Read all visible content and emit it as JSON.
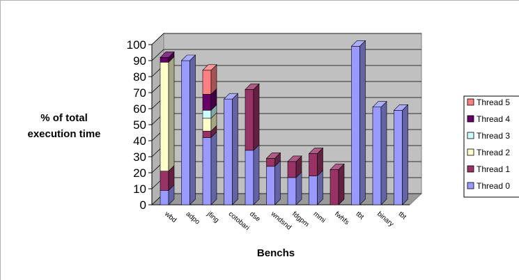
{
  "chart_data": {
    "type": "bar",
    "stacked": true,
    "three_d": true,
    "xlabel": "Benchs",
    "ylabel_lines": [
      "% of total",
      "execution time"
    ],
    "ylim": [
      0,
      100
    ],
    "yticks": [
      0,
      10,
      20,
      30,
      40,
      50,
      60,
      70,
      80,
      90,
      100
    ],
    "grid": true,
    "legend_position": "right",
    "categories": [
      "wbd",
      "adpo",
      "jfing",
      "cotobari",
      "dse",
      "wndsnd",
      "fdgpm",
      "mmi",
      "fwhfs",
      "tbt",
      "binary",
      "tbt"
    ],
    "series": [
      {
        "name": "Thread 0",
        "color": "#9999ff",
        "values": [
          9,
          90,
          42,
          66,
          34,
          24,
          17,
          18,
          0,
          99,
          61,
          59
        ]
      },
      {
        "name": "Thread 1",
        "color": "#993366",
        "values": [
          12,
          0,
          4,
          0,
          38,
          5,
          10,
          14,
          22,
          0,
          0,
          0
        ]
      },
      {
        "name": "Thread 2",
        "color": "#ffffcc",
        "values": [
          68,
          0,
          8,
          0,
          0,
          0,
          0,
          0,
          0,
          0,
          0,
          0
        ]
      },
      {
        "name": "Thread 3",
        "color": "#ccffff",
        "values": [
          0,
          0,
          5,
          0,
          0,
          0,
          0,
          0,
          0,
          0,
          0,
          0
        ]
      },
      {
        "name": "Thread 4",
        "color": "#660066",
        "values": [
          3,
          0,
          10,
          0,
          0,
          0,
          0,
          0,
          0,
          0,
          0,
          0
        ]
      },
      {
        "name": "Thread 5",
        "color": "#ff8080",
        "values": [
          0,
          0,
          15,
          0,
          0,
          0,
          0,
          0,
          0,
          0,
          0,
          0
        ]
      }
    ]
  }
}
